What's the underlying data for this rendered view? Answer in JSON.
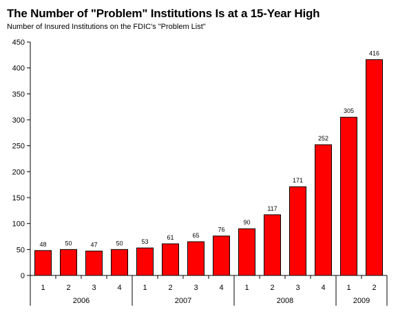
{
  "chart_data": {
    "type": "bar",
    "title": "The Number of \"Problem\" Institutions Is at a 15-Year High",
    "subtitle": "Number of Insured Institutions on the FDIC's \"Problem List\"",
    "categories": [
      "1",
      "2",
      "3",
      "4",
      "1",
      "2",
      "3",
      "4",
      "1",
      "2",
      "3",
      "4",
      "1",
      "2"
    ],
    "groups": [
      {
        "label": "2006",
        "count": 4
      },
      {
        "label": "2007",
        "count": 4
      },
      {
        "label": "2008",
        "count": 4
      },
      {
        "label": "2009",
        "count": 2
      }
    ],
    "values": [
      48,
      50,
      47,
      50,
      53,
      61,
      65,
      76,
      90,
      117,
      171,
      252,
      305,
      416
    ],
    "ylim": [
      0,
      450
    ],
    "yticks": [
      0,
      50,
      100,
      150,
      200,
      250,
      300,
      350,
      400,
      450
    ],
    "bar_color": "#ff0000",
    "grid": false,
    "legend": false
  }
}
